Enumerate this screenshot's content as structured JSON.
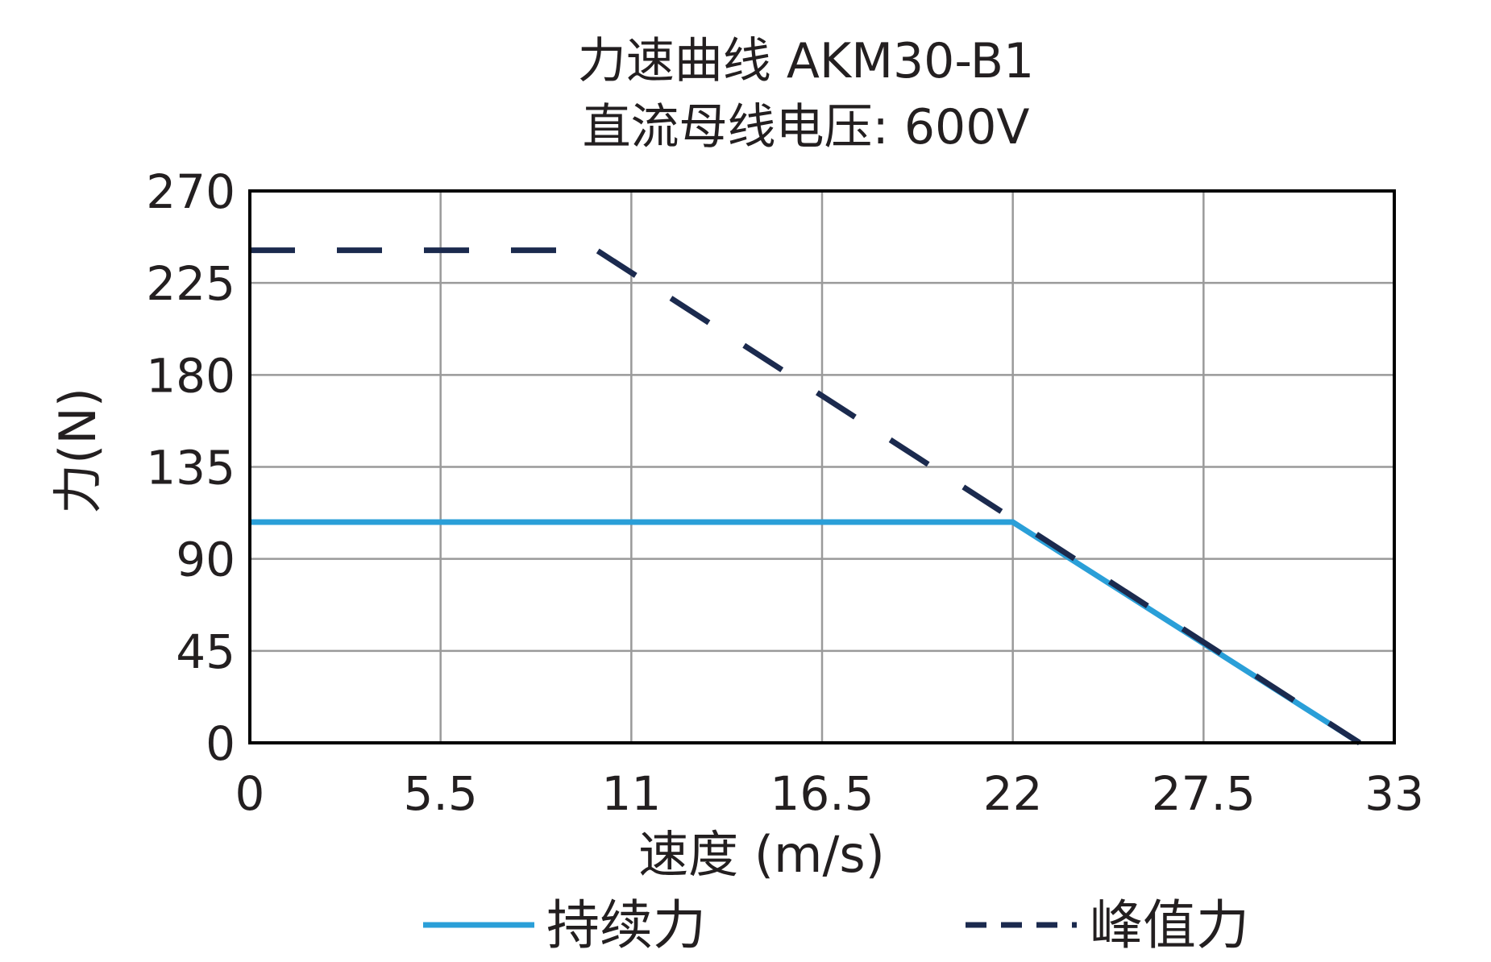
{
  "chart_data": {
    "type": "line",
    "title": "力速曲线 AKM30-B1",
    "subtitle": "直流母线电压: 600V",
    "xlabel": "速度 (m/s)",
    "ylabel": "力(N)",
    "xlim": [
      0,
      33
    ],
    "ylim": [
      0,
      270
    ],
    "xticks": [
      0,
      5.5,
      11,
      16.5,
      22,
      27.5,
      33
    ],
    "xtick_labels": [
      "0",
      "5.5",
      "11",
      "16.5",
      "22",
      "27.5",
      "33"
    ],
    "yticks": [
      0,
      45,
      90,
      135,
      180,
      225,
      270
    ],
    "ytick_labels": [
      "0",
      "45",
      "90",
      "135",
      "180",
      "225",
      "270"
    ],
    "grid": true,
    "legend_position": "bottom",
    "series": [
      {
        "name": "持续力",
        "style": "solid",
        "color": "#2a9fd8",
        "x": [
          0,
          22,
          32
        ],
        "y": [
          108,
          108,
          0
        ]
      },
      {
        "name": "峰值力",
        "style": "dashed",
        "color": "#1b2a4e",
        "x": [
          0,
          10,
          32
        ],
        "y": [
          241,
          241,
          0
        ]
      }
    ]
  }
}
